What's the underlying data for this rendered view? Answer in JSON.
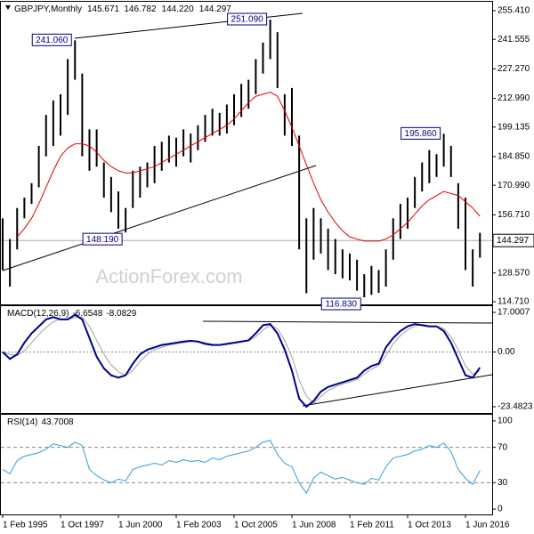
{
  "chart_data": [
    {
      "type": "range",
      "title": "GBPJPY,Monthly",
      "ohlc": [
        145.671,
        146.782,
        {
          "value": 144.22,
          "label": "144.220"
        },
        144.297
      ],
      "watermark": "ActionForex.com",
      "color": "#000000",
      "high": [
        155,
        145,
        160,
        165,
        172,
        190,
        205,
        212,
        215,
        232,
        241.06,
        225,
        198,
        198,
        182,
        175,
        168,
        160,
        178,
        180,
        182,
        190,
        192,
        195,
        194,
        198,
        196,
        200,
        205,
        208,
        206,
        210,
        215,
        220,
        222,
        232,
        240,
        251.09,
        245,
        215,
        218,
        195,
        155,
        160,
        155,
        150,
        145,
        140,
        138,
        135,
        128,
        132,
        130,
        140,
        155,
        162,
        165,
        175,
        182,
        188,
        186,
        195.86,
        190,
        172,
        165,
        140,
        148
      ],
      "low": [
        130,
        122,
        140,
        155,
        162,
        170,
        185,
        190,
        195,
        205,
        222,
        185,
        178,
        180,
        165,
        158,
        150,
        148.19,
        160,
        165,
        170,
        172,
        178,
        182,
        180,
        185,
        182,
        188,
        192,
        195,
        195,
        196,
        200,
        204,
        208,
        215,
        225,
        232,
        218,
        195,
        190,
        140,
        118.8,
        135,
        138,
        130,
        128,
        126,
        125,
        120,
        116.83,
        118,
        119,
        122,
        135,
        145,
        150,
        160,
        168,
        172,
        175,
        180,
        175,
        150,
        130,
        122,
        136
      ],
      "ma": {
        "color": "#e00000",
        "values": [
          null,
          null,
          146,
          150,
          155,
          162,
          170,
          178,
          185,
          189,
          191,
          191,
          190,
          187,
          183,
          180,
          178,
          177,
          177,
          178,
          179,
          180,
          182,
          184,
          186,
          188,
          190,
          192,
          194,
          196,
          198,
          200,
          203,
          207,
          211,
          214,
          215,
          216,
          214,
          207,
          199,
          190,
          181,
          172,
          164,
          158,
          153,
          149,
          146,
          145,
          144,
          144,
          144,
          145,
          147,
          150,
          153,
          157,
          161,
          164,
          166,
          168,
          167,
          166,
          163,
          160,
          156
        ]
      },
      "last": 144.297,
      "annotations": [
        {
          "value": 241.06,
          "label": "241.060"
        },
        {
          "value": 251.09,
          "label": "251.090"
        },
        {
          "value": 148.19,
          "label": "148.190"
        },
        {
          "value": 116.83,
          "label": "116.830"
        },
        {
          "value": 195.86,
          "label": "195.860"
        }
      ],
      "ylim": [
        113.4,
        259.7
      ],
      "yticks": [
        {
          "value": 255.41,
          "label": "255.410"
        },
        241.555,
        {
          "value": 227.27,
          "label": "227.270"
        },
        {
          "value": 212.99,
          "label": "212.990"
        },
        199.135,
        {
          "value": 184.85,
          "label": "184.850"
        },
        {
          "value": 170.99,
          "label": "170.990"
        },
        {
          "value": 156.71,
          "label": "156.710"
        },
        {
          "value": 128.57,
          "label": "128.570"
        },
        {
          "value": 114.71,
          "label": "114.710"
        }
      ]
    },
    {
      "type": "line",
      "title": "MACD(12,26,9)",
      "ylim": [
        -26.16,
        19.68
      ],
      "yticks": [
        17.0007,
        {
          "value": 0,
          "label": "0.00"
        },
        -23.4823
      ],
      "levels": [
        0
      ],
      "series": [
        {
          "color": "#00008b",
          "values": [
            0,
            -3,
            -1,
            4,
            8,
            11,
            14,
            15,
            14,
            14,
            16,
            14,
            6,
            -2,
            -7,
            -10,
            -11,
            -10,
            -5,
            -1,
            1,
            2,
            3,
            3.5,
            4,
            4.5,
            4.8,
            4.5,
            3.5,
            3,
            3,
            3.5,
            4,
            4.5,
            5,
            8,
            11.5,
            12,
            8,
            1,
            -8,
            -20,
            -23.5,
            -21,
            -17,
            -15,
            -14,
            -13,
            -12,
            -11,
            -8,
            -6,
            -5,
            2,
            6,
            9,
            11,
            12,
            11.5,
            11,
            11,
            9,
            4,
            -3,
            -10,
            -11,
            -6.6548
          ]
        },
        {
          "color": "#a0a0a0",
          "values": [
            0,
            -1,
            -1.5,
            0.5,
            4,
            7.5,
            10.5,
            13,
            14.2,
            14,
            14.8,
            15,
            11,
            5,
            -1,
            -5.5,
            -8.5,
            -10,
            -8,
            -4,
            -1,
            1,
            2,
            3,
            3.5,
            4,
            4.5,
            4.6,
            4,
            3.3,
            3,
            3.2,
            3.7,
            4.2,
            4.8,
            6.5,
            9.5,
            11.5,
            10,
            5,
            -2,
            -12,
            -19,
            -22,
            -19,
            -16.5,
            -15,
            -13.8,
            -12.8,
            -11.8,
            -9.5,
            -7.3,
            -5.8,
            -1.5,
            3.5,
            7,
            9.5,
            11.2,
            11.8,
            11.3,
            11,
            10,
            6.5,
            1,
            -6,
            -9.5,
            -8.0829
          ]
        }
      ]
    },
    {
      "type": "line",
      "title": "RSI(14)",
      "ylim": [
        -6,
        107
      ],
      "yticks": [
        100,
        70,
        30,
        0
      ],
      "levels": [
        70,
        30
      ],
      "categories": [
        "1 Feb 1995",
        null,
        null,
        null,
        null,
        null,
        null,
        null,
        "1 Oct 1997",
        null,
        null,
        null,
        null,
        null,
        null,
        null,
        "1 Jun 2000",
        null,
        null,
        null,
        null,
        null,
        null,
        null,
        "1 Feb 2003",
        null,
        null,
        null,
        null,
        null,
        null,
        null,
        "1 Oct 2005",
        null,
        null,
        null,
        null,
        null,
        null,
        null,
        "1 Jun 2008",
        null,
        null,
        null,
        null,
        null,
        null,
        null,
        "1 Feb 2011",
        null,
        null,
        null,
        null,
        null,
        null,
        null,
        "1 Oct 2013",
        null,
        null,
        null,
        null,
        null,
        null,
        null,
        "1 Jun 2016",
        null,
        null
      ],
      "series": [
        {
          "color": "#3a9ad9",
          "values": [
            45,
            40,
            55,
            60,
            62,
            64,
            68,
            74,
            72,
            70,
            76,
            72,
            45,
            38,
            33,
            30,
            34,
            32,
            45,
            48,
            50,
            52,
            50,
            55,
            53,
            56,
            54,
            55,
            53,
            58,
            56,
            60,
            62,
            64,
            66,
            70,
            76,
            78,
            62,
            52,
            48,
            30,
            18,
            35,
            42,
            38,
            34,
            36,
            33,
            30,
            28,
            35,
            33,
            48,
            58,
            60,
            62,
            66,
            68,
            72,
            70,
            75,
            65,
            45,
            35,
            28,
            43.7008
          ]
        }
      ]
    }
  ]
}
